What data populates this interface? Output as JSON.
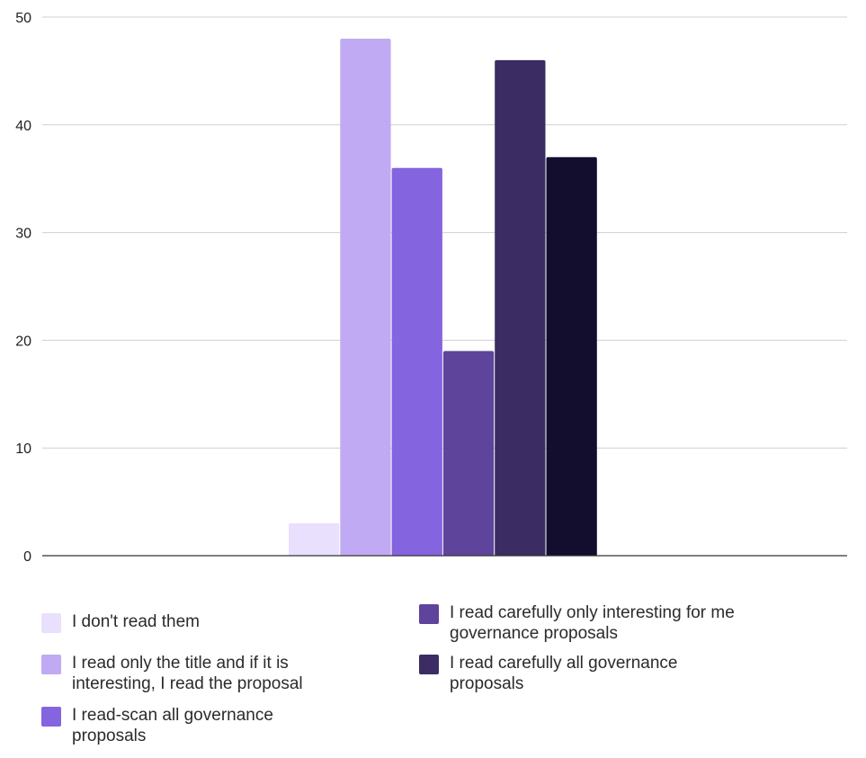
{
  "chart_data": {
    "type": "bar",
    "title": "",
    "xlabel": "",
    "ylabel": "",
    "ylim": [
      0,
      50
    ],
    "yticks": [
      0,
      10,
      20,
      30,
      40,
      50
    ],
    "grid": true,
    "legend_position": "bottom",
    "series": [
      {
        "name": "I don't read them",
        "value": 3,
        "color": "#e8e0fd"
      },
      {
        "name": "I read only the title and if it is interesting, I read the proposal",
        "value": 48,
        "color": "#c0aaf4"
      },
      {
        "name": "I read-scan all governance proposals",
        "value": 36,
        "color": "#8465df"
      },
      {
        "name": "I read carefully only interesting for me governance proposals",
        "value": 19,
        "color": "#5e449b"
      },
      {
        "name": "I read carefully all governance proposals",
        "value": 46,
        "color": "#3c2c64"
      },
      {
        "name": "",
        "value": 37,
        "color": "#130d2e"
      }
    ]
  }
}
